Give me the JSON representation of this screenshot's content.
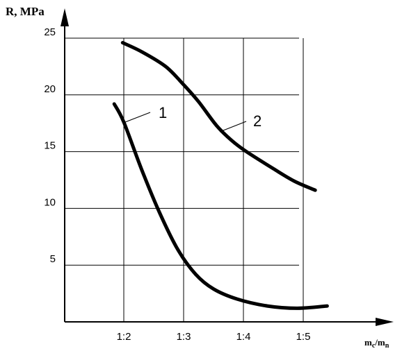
{
  "chart_data": {
    "type": "line",
    "title": "",
    "ylabel": "R, MPa",
    "xlabel_main": "m",
    "xlabel_sub1": "c",
    "xlabel_sep": "/m",
    "xlabel_sub2": "n",
    "categories": [
      "1:2",
      "1:3",
      "1:4",
      "1:5"
    ],
    "x_range": [
      1.6,
      5.9
    ],
    "ylim": [
      0,
      25
    ],
    "yticks": [
      5,
      10,
      15,
      20,
      25
    ],
    "grid": true,
    "legend": "none",
    "series": [
      {
        "name": "1",
        "color": "#000000",
        "points": [
          [
            1.84,
            19.2
          ],
          [
            2.0,
            17.6
          ],
          [
            2.3,
            13.4
          ],
          [
            2.6,
            9.6
          ],
          [
            2.9,
            6.4
          ],
          [
            3.2,
            4.2
          ],
          [
            3.5,
            2.9
          ],
          [
            3.9,
            2.0
          ],
          [
            4.4,
            1.4
          ],
          [
            4.9,
            1.2
          ],
          [
            5.4,
            1.4
          ]
        ]
      },
      {
        "name": "2",
        "color": "#000000",
        "points": [
          [
            1.98,
            24.6
          ],
          [
            2.3,
            23.8
          ],
          [
            2.7,
            22.5
          ],
          [
            3.0,
            20.9
          ],
          [
            3.25,
            19.4
          ],
          [
            3.55,
            17.3
          ],
          [
            3.8,
            16.0
          ],
          [
            4.05,
            15.0
          ],
          [
            4.5,
            13.5
          ],
          [
            4.85,
            12.4
          ],
          [
            5.2,
            11.6
          ]
        ]
      }
    ],
    "annotations": [
      {
        "text": "1",
        "series": 0
      },
      {
        "text": "2",
        "series": 1
      }
    ]
  }
}
